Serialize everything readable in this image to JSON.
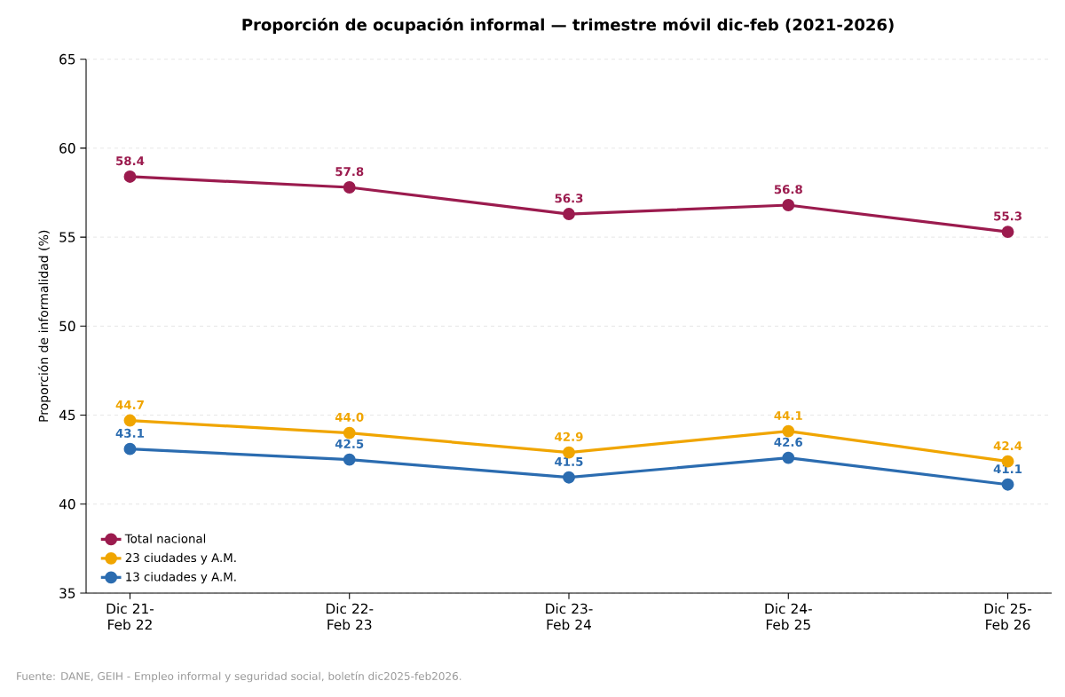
{
  "chart_data": {
    "type": "line",
    "title": "Proporción de ocupación informal — trimestre móvil dic-feb (2021-2026)",
    "ylabel": "Proporción de informalidad (%)",
    "categories": [
      "Dic 21- Feb 22",
      "Dic 22- Feb 23",
      "Dic 23- Feb 24",
      "Dic 24- Feb 25",
      "Dic 25- Feb 26"
    ],
    "series": [
      {
        "name": "Total nacional",
        "color": "#9b1b4e",
        "values": [
          58.4,
          57.8,
          56.3,
          56.8,
          55.3
        ],
        "value_labels": [
          "58.4",
          "57.8",
          "56.3",
          "56.8",
          "55.3"
        ]
      },
      {
        "name": "23 ciudades y A.M.",
        "color": "#f0a500",
        "values": [
          44.7,
          44.0,
          42.9,
          44.1,
          42.4
        ],
        "value_labels": [
          "44.7",
          "44.0",
          "42.9",
          "44.1",
          "42.4"
        ]
      },
      {
        "name": "13 ciudades y A.M.",
        "color": "#2b6cb0",
        "values": [
          43.1,
          42.5,
          41.5,
          42.6,
          41.1
        ],
        "value_labels": [
          "43.1",
          "42.5",
          "41.5",
          "42.6",
          "41.1"
        ]
      }
    ],
    "ylim": [
      35,
      65
    ],
    "yticks": [
      35,
      40,
      45,
      50,
      55,
      60,
      65
    ],
    "grid": "y",
    "legend": "bottom left",
    "marker": "circle",
    "line_style": "solid",
    "annotations": [
      "Fuente: DANE, GEIH - Empleo informal y seguridad social, boletín dic2025-feb2026."
    ]
  }
}
